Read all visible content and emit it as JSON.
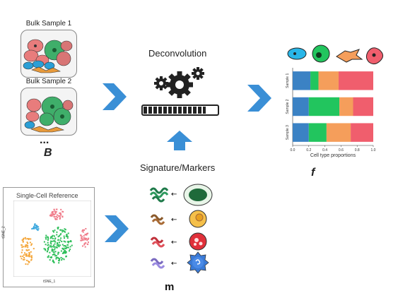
{
  "bulk": {
    "sample1_label": "Bulk Sample 1",
    "sample2_label": "Bulk Sample 2",
    "ellipsis": "...",
    "matrix_label": "B"
  },
  "deconvolution": {
    "title": "Deconvolution",
    "gear_icon": "gears-icon",
    "progress": 0.85
  },
  "signature": {
    "title": "Signature/Markers",
    "matrix_label": "m"
  },
  "single_cell": {
    "title": "Single-Cell Reference",
    "xlabel": "tSNE_1",
    "ylabel": "tSNE_2",
    "clusters": [
      {
        "color": "#f07c8a"
      },
      {
        "color": "#2fbf5a"
      },
      {
        "color": "#f4a63a"
      },
      {
        "color": "#3aa7de"
      }
    ]
  },
  "output": {
    "matrix_label": "f",
    "colors": {
      "cyan": "#29b6e8",
      "green": "#22c55e",
      "orange": "#f59e5b",
      "red": "#f05e6d",
      "blue": "#3b82c4"
    }
  },
  "chart_data": {
    "type": "bar",
    "orientation": "horizontal",
    "stacked": true,
    "categories": [
      "Sample 1",
      "Sample 2",
      "Sample 3"
    ],
    "series": [
      {
        "color": "#3b82c4",
        "values": [
          0.22,
          0.2,
          0.2
        ]
      },
      {
        "color": "#22c55e",
        "values": [
          0.1,
          0.38,
          0.22
        ]
      },
      {
        "color": "#f59e5b",
        "values": [
          0.25,
          0.17,
          0.3
        ]
      },
      {
        "color": "#f05e6d",
        "values": [
          0.43,
          0.25,
          0.28
        ]
      }
    ],
    "xlabel": "Cell type proportions",
    "xticks": [
      "0.0",
      "0.2",
      "0.4",
      "0.6",
      "0.8",
      "1.0"
    ],
    "xlim": [
      0,
      1
    ]
  }
}
